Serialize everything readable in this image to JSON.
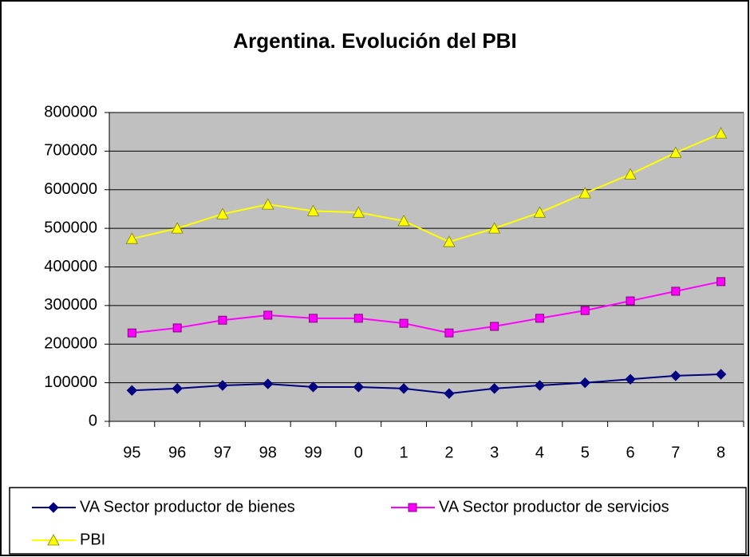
{
  "chart_data": {
    "type": "line",
    "title": "Argentina. Evolución del PBI",
    "categories": [
      "95",
      "96",
      "97",
      "98",
      "99",
      "0",
      "1",
      "2",
      "3",
      "4",
      "5",
      "6",
      "7",
      "8"
    ],
    "series": [
      {
        "name": "VA Sector productor de bienes",
        "color": "#000080",
        "marker": "diamond",
        "values": [
          80000,
          85000,
          93000,
          97000,
          89000,
          89000,
          85000,
          72000,
          85000,
          93000,
          100000,
          109000,
          118000,
          122000
        ]
      },
      {
        "name": "VA Sector productor de servicios",
        "color": "#ff00ff",
        "marker": "square",
        "values": [
          229000,
          242000,
          262000,
          275000,
          267000,
          267000,
          254000,
          229000,
          246000,
          267000,
          287000,
          312000,
          337000,
          362000
        ]
      },
      {
        "name": "PBI",
        "color": "#ffff00",
        "marker": "triangle",
        "values": [
          473000,
          500000,
          537000,
          562000,
          545000,
          541000,
          519000,
          465000,
          500000,
          541000,
          591000,
          640000,
          696000,
          746000
        ]
      }
    ],
    "ylim": [
      0,
      800000
    ],
    "yticks": [
      0,
      100000,
      200000,
      300000,
      400000,
      500000,
      600000,
      700000,
      800000
    ],
    "grid": true,
    "legend": "bottom"
  }
}
